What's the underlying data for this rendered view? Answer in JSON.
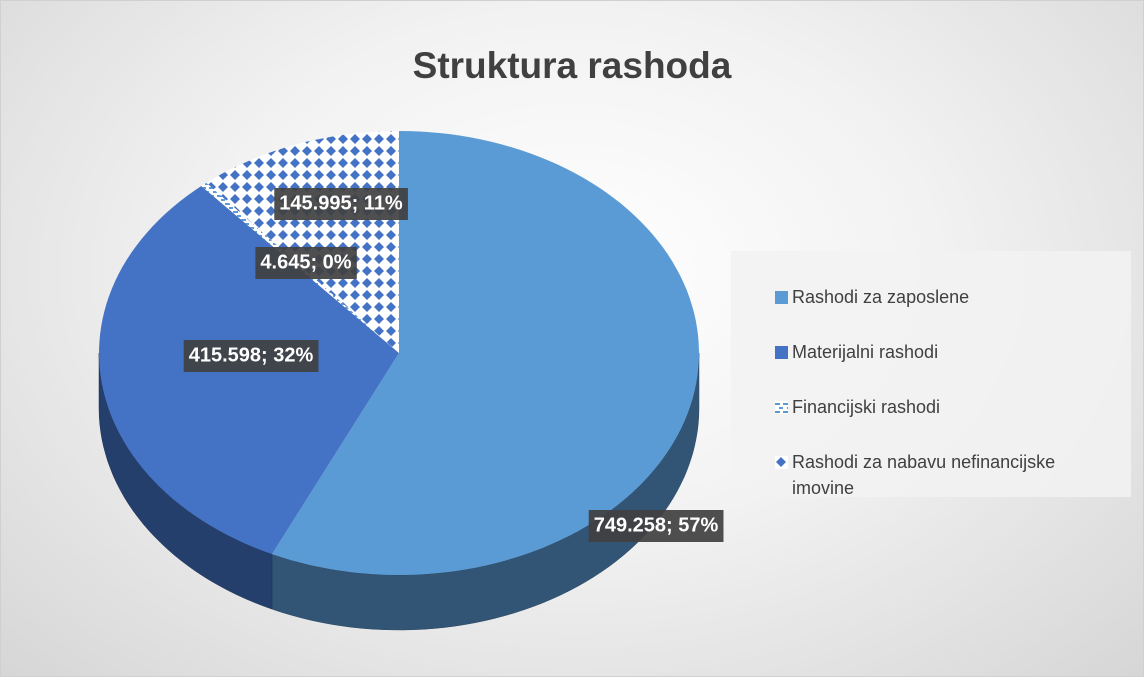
{
  "chart_data": {
    "type": "pie",
    "title": "Struktura rashoda",
    "categories": [
      "Rashodi za zaposlene",
      "Materijalni rashodi",
      "Financijski rashodi",
      "Rashodi za nabavu nefinancijske imovine"
    ],
    "values": [
      749258,
      415598,
      4645,
      145995
    ],
    "value_labels": [
      "749.258; 57%",
      "415.598; 32%",
      "4.645; 0%",
      "145.995; 11%"
    ],
    "colors": [
      "#5b9bd5",
      "#4472c4",
      "#5b9bd5",
      "#4472c4"
    ],
    "patterns": [
      "solid",
      "solid",
      "dashes",
      "diamonds"
    ],
    "legend": "right"
  }
}
